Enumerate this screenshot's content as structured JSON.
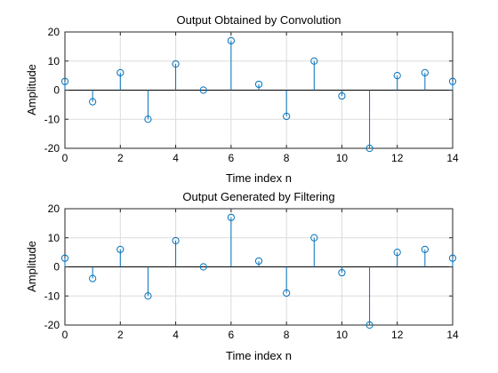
{
  "chart_data": [
    {
      "type": "stem",
      "title": "Output Obtained by Convolution",
      "xlabel": "Time index n",
      "ylabel": "Amplitude",
      "xlim": [
        0,
        14
      ],
      "ylim": [
        -20,
        20
      ],
      "xticks": [
        0,
        2,
        4,
        6,
        8,
        10,
        12,
        14
      ],
      "yticks": [
        -20,
        -10,
        0,
        10,
        20
      ],
      "grid": true,
      "color": "#0072bd",
      "x": [
        0,
        1,
        2,
        3,
        4,
        5,
        6,
        7,
        8,
        9,
        10,
        11,
        12,
        13,
        14
      ],
      "values": [
        3,
        -4,
        6,
        -10,
        9,
        0,
        17,
        2,
        -9,
        10,
        -2,
        -20,
        5,
        6,
        3
      ]
    },
    {
      "type": "stem",
      "title": "Output Generated by Filtering",
      "xlabel": "Time index n",
      "ylabel": "Amplitude",
      "xlim": [
        0,
        14
      ],
      "ylim": [
        -20,
        20
      ],
      "xticks": [
        0,
        2,
        4,
        6,
        8,
        10,
        12,
        14
      ],
      "yticks": [
        -20,
        -10,
        0,
        10,
        20
      ],
      "grid": true,
      "color": "#0072bd",
      "x": [
        0,
        1,
        2,
        3,
        4,
        5,
        6,
        7,
        8,
        9,
        10,
        11,
        12,
        13,
        14
      ],
      "values": [
        3,
        -4,
        6,
        -10,
        9,
        0,
        17,
        2,
        -9,
        10,
        -2,
        -20,
        5,
        6,
        3
      ]
    }
  ]
}
